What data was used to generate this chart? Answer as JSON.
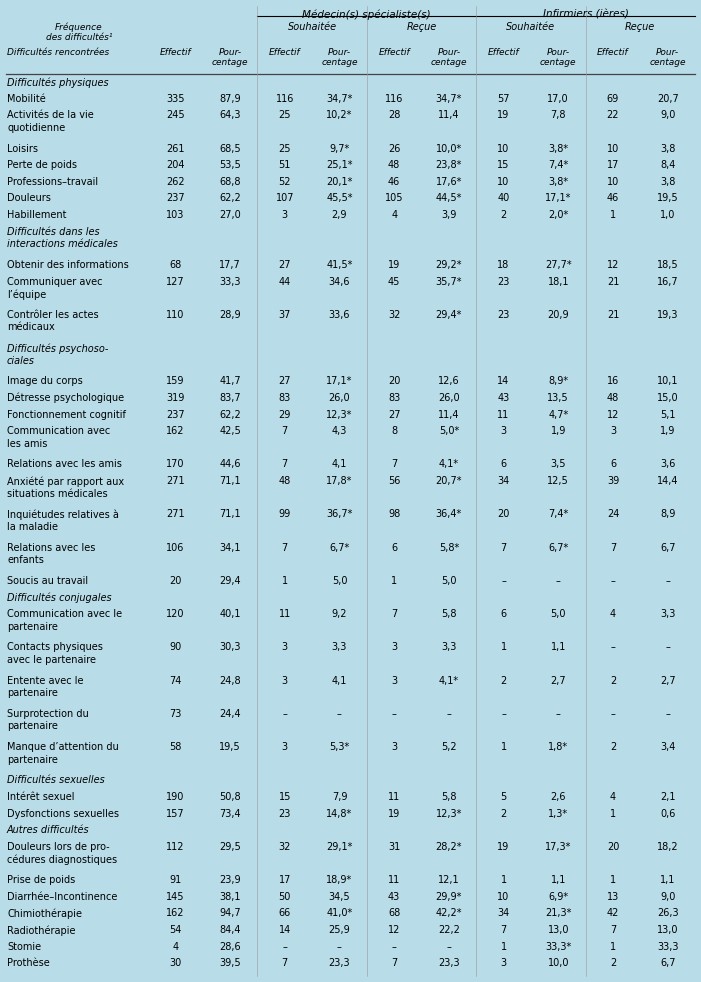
{
  "bg_color": "#b8dce8",
  "header1": "Médecin(s) spécialiste(s)",
  "header2": "Infirmiers (ières)",
  "sections": [
    {
      "section_title": "Difficultés physiques",
      "rows": [
        [
          "Mobilité",
          "335",
          "87,9",
          "116",
          "34,7*",
          "116",
          "34,7*",
          "57",
          "17,0",
          "69",
          "20,7"
        ],
        [
          "Activités de la vie\nquotidienne",
          "245",
          "64,3",
          "25",
          "10,2*",
          "28",
          "11,4",
          "19",
          "7,8",
          "22",
          "9,0"
        ],
        [
          "Loisirs",
          "261",
          "68,5",
          "25",
          "9,7*",
          "26",
          "10,0*",
          "10",
          "3,8*",
          "10",
          "3,8"
        ],
        [
          "Perte de poids",
          "204",
          "53,5",
          "51",
          "25,1*",
          "48",
          "23,8*",
          "15",
          "7,4*",
          "17",
          "8,4"
        ],
        [
          "Professions–travail",
          "262",
          "68,8",
          "52",
          "20,1*",
          "46",
          "17,6*",
          "10",
          "3,8*",
          "10",
          "3,8"
        ],
        [
          "Douleurs",
          "237",
          "62,2",
          "107",
          "45,5*",
          "105",
          "44,5*",
          "40",
          "17,1*",
          "46",
          "19,5"
        ],
        [
          "Habillement",
          "103",
          "27,0",
          "3",
          "2,9",
          "4",
          "3,9",
          "2",
          "2,0*",
          "1",
          "1,0"
        ]
      ]
    },
    {
      "section_title": "Difficultés dans les\ninteractions médicales",
      "rows": [
        [
          "Obtenir des informations",
          "68",
          "17,7",
          "27",
          "41,5*",
          "19",
          "29,2*",
          "18",
          "27,7*",
          "12",
          "18,5"
        ],
        [
          "Communiquer avec\nl’équipe",
          "127",
          "33,3",
          "44",
          "34,6",
          "45",
          "35,7*",
          "23",
          "18,1",
          "21",
          "16,7"
        ],
        [
          "Contrôler les actes\nmédicaux",
          "110",
          "28,9",
          "37",
          "33,6",
          "32",
          "29,4*",
          "23",
          "20,9",
          "21",
          "19,3"
        ]
      ]
    },
    {
      "section_title": "Difficultés psychoso-\nciales",
      "rows": [
        [
          "Image du corps",
          "159",
          "41,7",
          "27",
          "17,1*",
          "20",
          "12,6",
          "14",
          "8,9*",
          "16",
          "10,1"
        ],
        [
          "Détresse psychologique",
          "319",
          "83,7",
          "83",
          "26,0",
          "83",
          "26,0",
          "43",
          "13,5",
          "48",
          "15,0"
        ],
        [
          "Fonctionnement cognitif",
          "237",
          "62,2",
          "29",
          "12,3*",
          "27",
          "11,4",
          "11",
          "4,7*",
          "12",
          "5,1"
        ],
        [
          "Communication avec\nles amis",
          "162",
          "42,5",
          "7",
          "4,3",
          "8",
          "5,0*",
          "3",
          "1,9",
          "3",
          "1,9"
        ],
        [
          "Relations avec les amis",
          "170",
          "44,6",
          "7",
          "4,1",
          "7",
          "4,1*",
          "6",
          "3,5",
          "6",
          "3,6"
        ],
        [
          "Anxiété par rapport aux\nsituations médicales",
          "271",
          "71,1",
          "48",
          "17,8*",
          "56",
          "20,7*",
          "34",
          "12,5",
          "39",
          "14,4"
        ],
        [
          "Inquiétudes relatives à\nla maladie",
          "271",
          "71,1",
          "99",
          "36,7*",
          "98",
          "36,4*",
          "20",
          "7,4*",
          "24",
          "8,9"
        ],
        [
          "Relations avec les\nenfants",
          "106",
          "34,1",
          "7",
          "6,7*",
          "6",
          "5,8*",
          "7",
          "6,7*",
          "7",
          "6,7"
        ],
        [
          "Soucis au travail",
          "20",
          "29,4",
          "1",
          "5,0",
          "1",
          "5,0",
          "–",
          "–",
          "–",
          "–"
        ]
      ]
    },
    {
      "section_title": "Difficultés conjugales",
      "rows": [
        [
          "Communication avec le\npartenaire",
          "120",
          "40,1",
          "11",
          "9,2",
          "7",
          "5,8",
          "6",
          "5,0",
          "4",
          "3,3"
        ],
        [
          "Contacts physiques\navec le partenaire",
          "90",
          "30,3",
          "3",
          "3,3",
          "3",
          "3,3",
          "1",
          "1,1",
          "–",
          "–"
        ],
        [
          "Entente avec le\npartenaire",
          "74",
          "24,8",
          "3",
          "4,1",
          "3",
          "4,1*",
          "2",
          "2,7",
          "2",
          "2,7"
        ],
        [
          "Surprotection du\npartenaire",
          "73",
          "24,4",
          "–",
          "–",
          "–",
          "–",
          "–",
          "–",
          "–",
          "–"
        ],
        [
          "Manque d’attention du\npartenaire",
          "58",
          "19,5",
          "3",
          "5,3*",
          "3",
          "5,2",
          "1",
          "1,8*",
          "2",
          "3,4"
        ]
      ]
    },
    {
      "section_title": "Difficultés sexuelles",
      "rows": [
        [
          "Intérêt sexuel",
          "190",
          "50,8",
          "15",
          "7,9",
          "11",
          "5,8",
          "5",
          "2,6",
          "4",
          "2,1"
        ],
        [
          "Dysfonctions sexuelles",
          "157",
          "73,4",
          "23",
          "14,8*",
          "19",
          "12,3*",
          "2",
          "1,3*",
          "1",
          "0,6"
        ]
      ]
    },
    {
      "section_title": "Autres difficultés",
      "rows": [
        [
          "Douleurs lors de pro-\ncédures diagnostiques",
          "112",
          "29,5",
          "32",
          "29,1*",
          "31",
          "28,2*",
          "19",
          "17,3*",
          "20",
          "18,2"
        ],
        [
          "Prise de poids",
          "91",
          "23,9",
          "17",
          "18,9*",
          "11",
          "12,1",
          "1",
          "1,1",
          "1",
          "1,1"
        ],
        [
          "Diarrhée–Incontinence",
          "145",
          "38,1",
          "50",
          "34,5",
          "43",
          "29,9*",
          "10",
          "6,9*",
          "13",
          "9,0"
        ],
        [
          "Chimiothérapie",
          "162",
          "94,7",
          "66",
          "41,0*",
          "68",
          "42,2*",
          "34",
          "21,3*",
          "42",
          "26,3"
        ],
        [
          "Radiothérapie",
          "54",
          "84,4",
          "14",
          "25,9",
          "12",
          "22,2",
          "7",
          "13,0",
          "7",
          "13,0"
        ],
        [
          "Stomie",
          "4",
          "28,6",
          "–",
          "–",
          "–",
          "–",
          "1",
          "33,3*",
          "1",
          "33,3"
        ],
        [
          "Prothèse",
          "30",
          "39,5",
          "7",
          "23,3",
          "7",
          "23,3",
          "3",
          "10,0",
          "2",
          "6,7"
        ]
      ]
    }
  ]
}
